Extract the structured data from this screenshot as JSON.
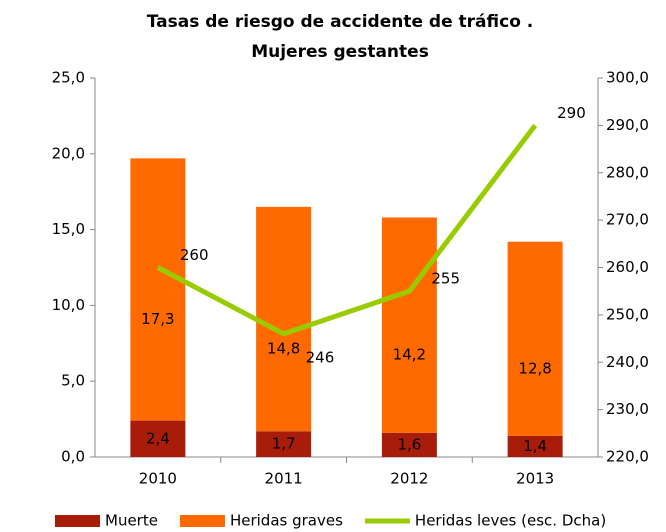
{
  "chart_data": {
    "type": "bar-line",
    "title": [
      "Tasas de riesgo de accidente de tráfico .",
      "Mujeres gestantes"
    ],
    "categories": [
      "2010",
      "2011",
      "2012",
      "2013"
    ],
    "series": [
      {
        "name": "Muerte",
        "color": "#a81c0a",
        "type": "bar",
        "values": [
          2.4,
          1.7,
          1.6,
          1.4
        ],
        "value_labels": [
          "2,4",
          "1,7",
          "1,6",
          "1,4"
        ]
      },
      {
        "name": "Heridas graves",
        "color": "#ff6a00",
        "type": "bar",
        "values": [
          17.3,
          14.8,
          14.2,
          12.8
        ],
        "value_labels": [
          "17,3",
          "14,8",
          "14,2",
          "12,8"
        ]
      },
      {
        "name": "Heridas leves (esc. Dcha)",
        "color": "#99cc00",
        "type": "line",
        "axis": "y2",
        "values": [
          260,
          246,
          255,
          290
        ]
      }
    ],
    "stacked": true,
    "ylim": [
      0,
      25
    ],
    "yticks": [
      {
        "value": 0,
        "label": "0,0"
      },
      {
        "value": 5,
        "label": "5,0"
      },
      {
        "value": 10,
        "label": "10,0"
      },
      {
        "value": 15,
        "label": "15,0"
      },
      {
        "value": 20,
        "label": "20,0"
      },
      {
        "value": 25,
        "label": "25,0"
      }
    ],
    "y2lim": [
      220,
      300
    ],
    "y2ticks": [
      {
        "value": 220,
        "label": "220,0"
      },
      {
        "value": 230,
        "label": "230,0"
      },
      {
        "value": 240,
        "label": "240,0"
      },
      {
        "value": 250,
        "label": "250,0"
      },
      {
        "value": 260,
        "label": "260,0"
      },
      {
        "value": 270,
        "label": "270,0"
      },
      {
        "value": 280,
        "label": "280,0"
      },
      {
        "value": 290,
        "label": "290,0"
      },
      {
        "value": 300,
        "label": "300,0"
      }
    ],
    "grid": false,
    "legend": "bottom"
  }
}
